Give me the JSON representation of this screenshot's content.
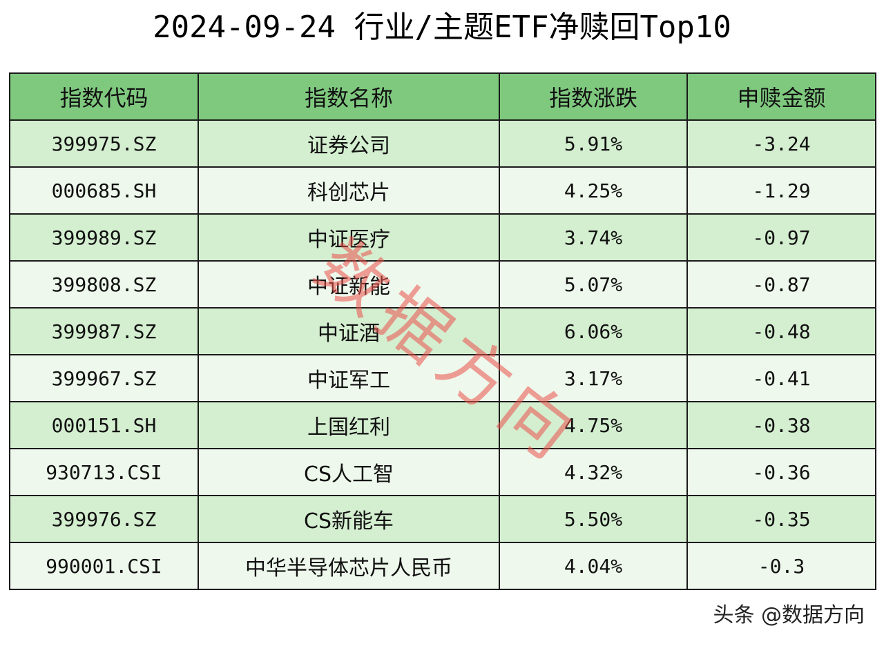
{
  "title": "2024-09-24 行业/主题ETF净赎回Top10",
  "table": {
    "headers": [
      "指数代码",
      "指数名称",
      "指数涨跌",
      "申赎金额"
    ],
    "rows": [
      {
        "code": "399975.SZ",
        "name": "证券公司",
        "change": "5.91%",
        "amount": "-3.24"
      },
      {
        "code": "000685.SH",
        "name": "科创芯片",
        "change": "4.25%",
        "amount": "-1.29"
      },
      {
        "code": "399989.SZ",
        "name": "中证医疗",
        "change": "3.74%",
        "amount": "-0.97"
      },
      {
        "code": "399808.SZ",
        "name": "中证新能",
        "change": "5.07%",
        "amount": "-0.87"
      },
      {
        "code": "399987.SZ",
        "name": "中证酒",
        "change": "6.06%",
        "amount": "-0.48"
      },
      {
        "code": "399967.SZ",
        "name": "中证军工",
        "change": "3.17%",
        "amount": "-0.41"
      },
      {
        "code": "000151.SH",
        "name": "上国红利",
        "change": "4.75%",
        "amount": "-0.38"
      },
      {
        "code": "930713.CSI",
        "name": "CS人工智",
        "change": "4.32%",
        "amount": "-0.36"
      },
      {
        "code": "399976.SZ",
        "name": "CS新能车",
        "change": "5.50%",
        "amount": "-0.35"
      },
      {
        "code": "990001.CSI",
        "name": "中华半导体芯片人民币",
        "change": "4.04%",
        "amount": "-0.3"
      }
    ]
  },
  "watermark": "数据方向",
  "credit": "头条 @数据方向",
  "colors": {
    "header_bg": "#7fc97f",
    "row_odd_bg": "#d4eed0",
    "row_even_bg": "#eef8ec",
    "watermark": "#eb504b"
  }
}
